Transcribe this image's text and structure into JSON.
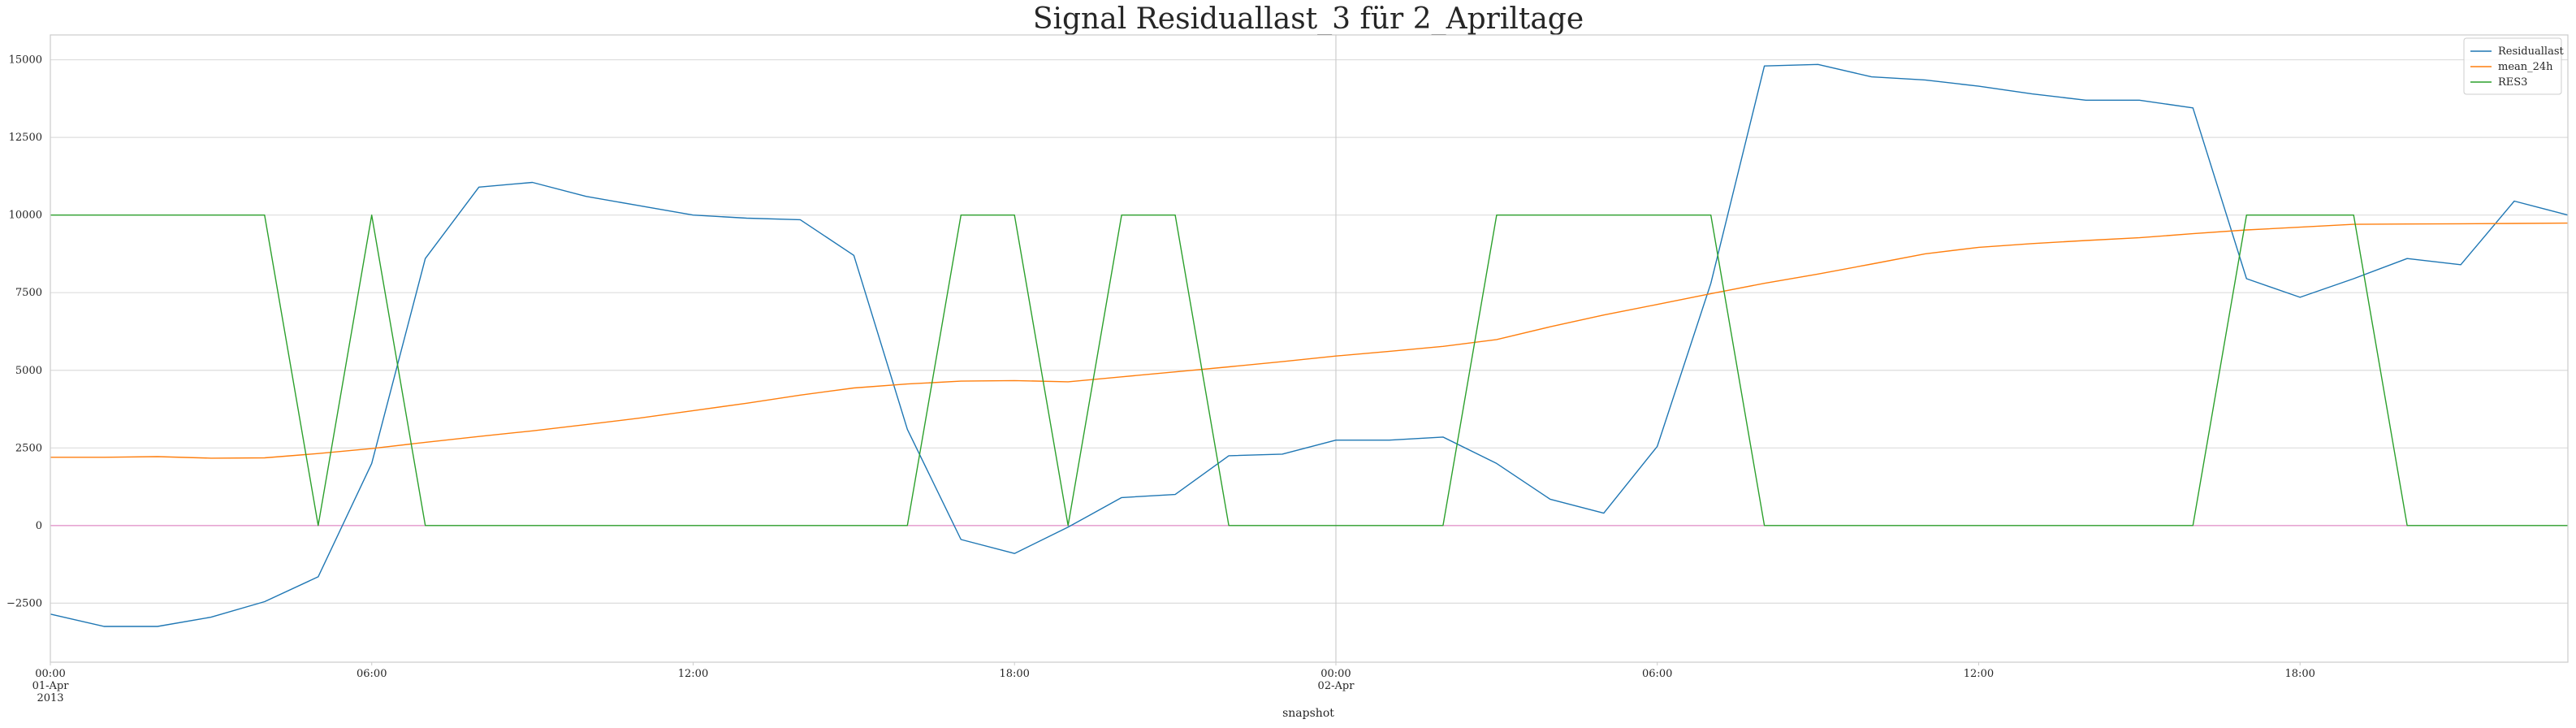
{
  "chart_data": {
    "type": "line",
    "title": "Signal Residuallast_3 für 2_Apriltage",
    "xlabel": "snapshot",
    "ylabel": "",
    "ylim": [
      -4400,
      15800
    ],
    "xlim": [
      0,
      47
    ],
    "x_unit": "hours since 2013-04-01 00:00",
    "grid": true,
    "legend_position": "top-right",
    "yticks": [
      -2500,
      0,
      2500,
      5000,
      7500,
      10000,
      12500,
      15000
    ],
    "ytick_labels": [
      "−2500",
      "0",
      "2500",
      "5000",
      "7500",
      "10000",
      "12500",
      "15000"
    ],
    "xticks": [
      {
        "x": 0,
        "lines": [
          "00:00",
          "01-Apr",
          "2013"
        ]
      },
      {
        "x": 6,
        "lines": [
          "06:00"
        ]
      },
      {
        "x": 12,
        "lines": [
          "12:00"
        ]
      },
      {
        "x": 18,
        "lines": [
          "18:00"
        ]
      },
      {
        "x": 24,
        "lines": [
          "00:00",
          "02-Apr"
        ]
      },
      {
        "x": 30,
        "lines": [
          "06:00"
        ]
      },
      {
        "x": 36,
        "lines": [
          "12:00"
        ]
      },
      {
        "x": 42,
        "lines": [
          "18:00"
        ]
      }
    ],
    "vline_x": 24,
    "series": [
      {
        "name": "Residuallast",
        "color": "#1f77b4",
        "values": [
          -2850,
          -3250,
          -3250,
          -2950,
          -2450,
          -1650,
          2000,
          8600,
          10900,
          11050,
          10600,
          10300,
          10000,
          9900,
          9850,
          8700,
          3100,
          -450,
          -900,
          -50,
          900,
          1000,
          2250,
          2300,
          2750,
          2750,
          2850,
          2000,
          850,
          400,
          2550,
          7800,
          14800,
          14850,
          14450,
          14350,
          14150,
          13900,
          13700,
          13700,
          13450,
          7950,
          7350,
          7950,
          8600,
          8400,
          10450,
          10000
        ]
      },
      {
        "name": "mean_24h",
        "color": "#ff7f0e",
        "values": [
          2200,
          2200,
          2220,
          2170,
          2180,
          2320,
          2480,
          2680,
          2870,
          3050,
          3250,
          3460,
          3700,
          3940,
          4200,
          4430,
          4560,
          4650,
          4670,
          4630,
          4790,
          4950,
          5110,
          5280,
          5460,
          5610,
          5770,
          5990,
          6400,
          6780,
          7120,
          7470,
          7800,
          8100,
          8420,
          8750,
          8960,
          9080,
          9180,
          9270,
          9400,
          9520,
          9610,
          9700,
          9710,
          9720,
          9730,
          9740
        ]
      },
      {
        "name": "RES3",
        "color": "#2ca02c",
        "values": [
          10000,
          10000,
          10000,
          10000,
          10000,
          0,
          10000,
          0,
          0,
          0,
          0,
          0,
          0,
          0,
          0,
          0,
          0,
          10000,
          10000,
          0,
          10000,
          10000,
          0,
          0,
          0,
          0,
          0,
          10000,
          10000,
          10000,
          10000,
          10000,
          0,
          0,
          0,
          0,
          0,
          0,
          0,
          0,
          0,
          10000,
          10000,
          10000,
          0,
          0,
          0,
          0
        ]
      }
    ],
    "zero_line_color": "#e377c2"
  }
}
